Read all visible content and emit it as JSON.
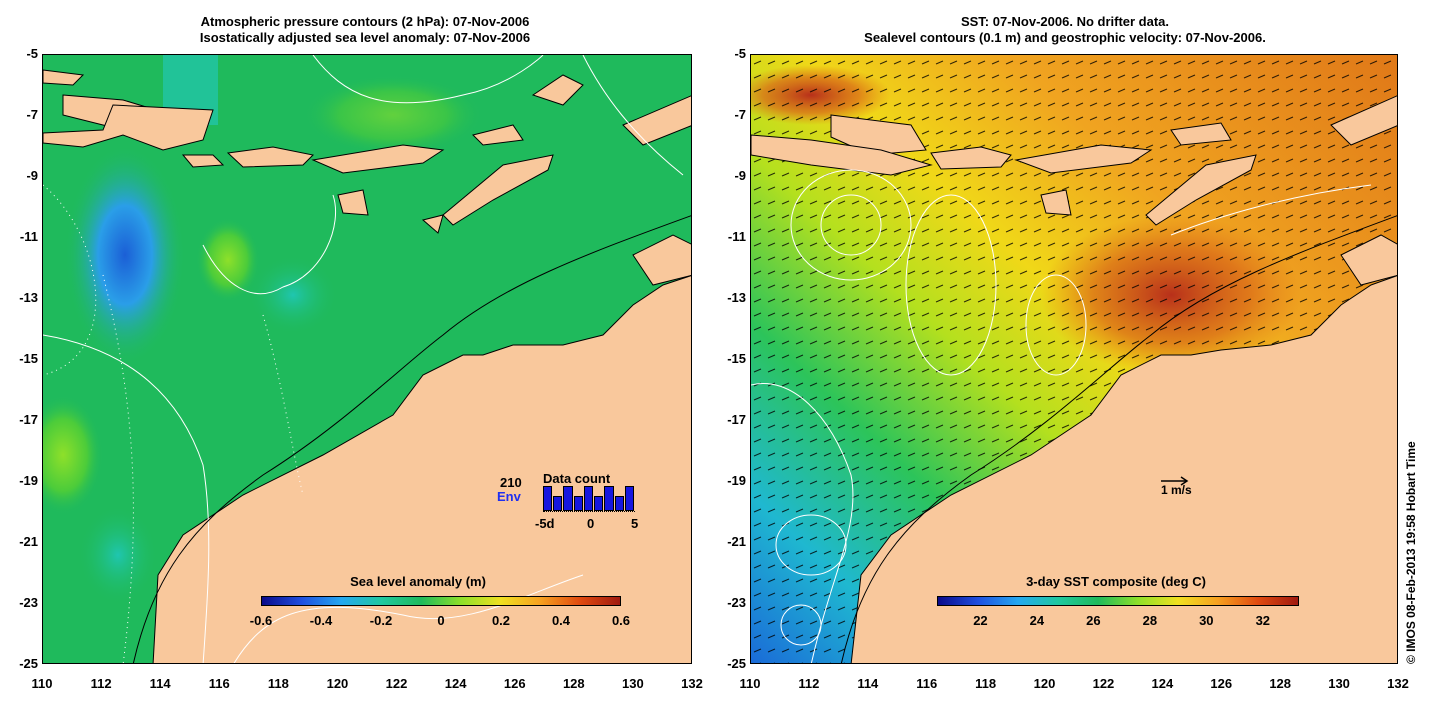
{
  "left_panel": {
    "title_line1": "Atmospheric pressure contours (2 hPa): 07-Nov-2006",
    "title_line2": "Isostatically adjusted sea level anomaly: 07-Nov-2006",
    "colorbar_title": "Sea level anomaly (m)",
    "colorbar_ticks": [
      "-0.6",
      "-0.4",
      "-0.2",
      "0",
      "0.2",
      "0.4",
      "0.6"
    ],
    "inset": {
      "title": "Data count",
      "count": "210",
      "source": "Env",
      "ticks": [
        "-5d",
        "0",
        "5"
      ],
      "bars": [
        0.9,
        0.55,
        0.9,
        0.55,
        0.9,
        0.55,
        0.9,
        0.55,
        0.9
      ]
    }
  },
  "right_panel": {
    "title_line1": "SST: 07-Nov-2006. No drifter data.",
    "title_line2": "Sealevel contours (0.1 m) and geostrophic velocity: 07-Nov-2006.",
    "colorbar_title": "3-day SST composite (deg C)",
    "colorbar_ticks": [
      "22",
      "24",
      "26",
      "28",
      "30",
      "32"
    ],
    "scale_label": "1 m/s"
  },
  "axes": {
    "y_ticks": [
      "-5",
      "-7",
      "-9",
      "-11",
      "-13",
      "-15",
      "-17",
      "-19",
      "-21",
      "-23",
      "-25"
    ],
    "x_ticks": [
      "110",
      "112",
      "114",
      "116",
      "118",
      "120",
      "122",
      "124",
      "126",
      "128",
      "130",
      "132"
    ]
  },
  "credit": "© IMOS 08-Feb-2013 19:58 Hobart Time",
  "colors": {
    "land": "#f9c89c",
    "ocean_green": "#1fba5c",
    "sst_orange": "#f0a020"
  }
}
